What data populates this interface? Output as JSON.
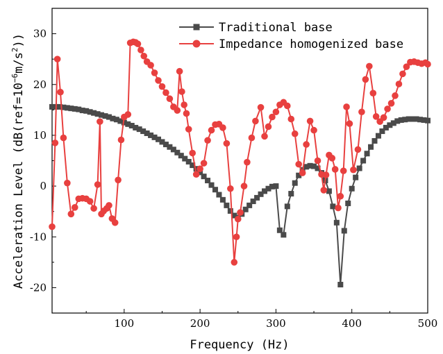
{
  "chart_data": {
    "type": "line",
    "xlabel": "Frequency (Hz)",
    "ylabel_prefix": "Acceleration Level (dB(ref=10",
    "ylabel_exp": "−6",
    "ylabel_mid": "m/s",
    "ylabel_exp2": "2",
    "ylabel_suffix": "))",
    "xlim": [
      5,
      500
    ],
    "ylim": [
      -25,
      35
    ],
    "xticks": [
      100,
      200,
      300,
      400,
      500
    ],
    "yticks": [
      -20,
      -10,
      0,
      10,
      20,
      30
    ],
    "legend_position": "top-right",
    "grid": false,
    "series": [
      {
        "name": "Traditional base",
        "color": "#4a4a4a",
        "marker": "square",
        "x": [
          5,
          10,
          15,
          20,
          25,
          30,
          35,
          40,
          45,
          50,
          55,
          60,
          65,
          70,
          75,
          80,
          85,
          90,
          95,
          100,
          105,
          110,
          115,
          120,
          125,
          130,
          135,
          140,
          145,
          150,
          155,
          160,
          165,
          170,
          175,
          180,
          185,
          190,
          195,
          200,
          205,
          210,
          215,
          220,
          225,
          230,
          235,
          240,
          245,
          250,
          255,
          260,
          265,
          270,
          275,
          280,
          285,
          290,
          295,
          300,
          305,
          310,
          315,
          320,
          325,
          330,
          335,
          340,
          345,
          350,
          355,
          360,
          365,
          370,
          375,
          380,
          385,
          390,
          395,
          400,
          405,
          410,
          415,
          420,
          425,
          430,
          435,
          440,
          445,
          450,
          455,
          460,
          465,
          470,
          475,
          480,
          485,
          490,
          495,
          500
        ],
        "y": [
          15.6,
          15.6,
          15.6,
          15.5,
          15.4,
          15.3,
          15.2,
          15.1,
          14.9,
          14.8,
          14.6,
          14.4,
          14.2,
          14.0,
          13.8,
          13.6,
          13.3,
          13.1,
          12.8,
          12.5,
          12.2,
          11.9,
          11.5,
          11.2,
          10.8,
          10.4,
          10.0,
          9.6,
          9.2,
          8.7,
          8.2,
          7.7,
          7.2,
          6.6,
          6.0,
          5.4,
          4.8,
          4.1,
          3.4,
          2.7,
          1.9,
          1.1,
          0.2,
          -0.7,
          -1.7,
          -2.7,
          -3.8,
          -4.9,
          -5.8,
          -6.2,
          -5.5,
          -4.6,
          -3.8,
          -3.0,
          -2.3,
          -1.6,
          -1.0,
          -0.5,
          -0.1,
          0.0,
          -8.7,
          -9.6,
          -4.0,
          -1.5,
          0.6,
          2.1,
          3.2,
          3.8,
          4.0,
          3.9,
          3.5,
          2.6,
          1.1,
          -1.0,
          -4.0,
          -7.2,
          -19.4,
          -8.8,
          -3.4,
          -0.5,
          1.7,
          3.5,
          5.0,
          6.4,
          7.7,
          8.9,
          9.9,
          10.8,
          11.5,
          12.0,
          12.4,
          12.8,
          13.0,
          13.1,
          13.2,
          13.2,
          13.2,
          13.1,
          13.0,
          12.9
        ]
      },
      {
        "name": "Impedance homogenized base",
        "color": "#e8403f",
        "marker": "circle",
        "x": [
          5,
          9,
          12,
          16,
          20,
          25,
          30,
          35,
          40,
          45,
          50,
          55,
          60,
          65,
          68,
          70,
          73,
          77,
          80,
          84,
          88,
          92,
          96,
          100,
          105,
          108,
          112,
          115,
          118,
          122,
          126,
          130,
          135,
          140,
          145,
          150,
          155,
          160,
          165,
          170,
          173,
          176,
          179,
          182,
          185,
          190,
          195,
          200,
          205,
          210,
          215,
          220,
          225,
          230,
          235,
          240,
          245,
          248,
          250,
          253,
          258,
          262,
          268,
          273,
          280,
          285,
          290,
          295,
          300,
          305,
          310,
          315,
          320,
          325,
          330,
          335,
          340,
          345,
          350,
          355,
          360,
          363,
          366,
          370,
          374,
          378,
          382,
          385,
          389,
          393,
          397,
          402,
          408,
          413,
          418,
          423,
          428,
          432,
          437,
          442,
          447,
          452,
          457,
          462,
          467,
          472,
          477,
          482,
          487,
          492,
          497,
          500
        ],
        "y": [
          -8,
          8.5,
          25,
          18.5,
          9.5,
          0.6,
          -5.5,
          -4.2,
          -2.5,
          -2.4,
          -2.5,
          -3.0,
          -4.4,
          0.3,
          12.7,
          -5.5,
          -4.9,
          -4.4,
          -3.8,
          -6.4,
          -7.2,
          1.2,
          9.1,
          13.6,
          14.1,
          28.2,
          28.4,
          28.3,
          28.0,
          26.8,
          25.6,
          24.5,
          23.8,
          22.3,
          20.8,
          19.6,
          18.4,
          17.2,
          15.6,
          14.9,
          22.6,
          18.6,
          16.0,
          14.3,
          11.2,
          6.5,
          2.3,
          3.4,
          4.5,
          9.0,
          11.0,
          12.1,
          12.2,
          11.5,
          8.4,
          -0.5,
          -15.0,
          -10.0,
          -6.5,
          -5.2,
          0.0,
          4.7,
          9.5,
          12.8,
          15.5,
          9.8,
          11.7,
          13.6,
          14.6,
          16.0,
          16.5,
          15.8,
          13.2,
          10.3,
          4.3,
          2.6,
          8.2,
          12.8,
          11.0,
          5.0,
          2.3,
          -0.8,
          2.2,
          6.1,
          5.5,
          3.3,
          -4.3,
          -2.0,
          3.0,
          15.6,
          12.3,
          3.2,
          7.2,
          14.6,
          21.0,
          23.6,
          18.3,
          13.7,
          12.7,
          13.5,
          15.2,
          16.3,
          17.8,
          20.1,
          22.1,
          23.5,
          24.4,
          24.5,
          24.3,
          24.1,
          24.3,
          24.0
        ]
      }
    ]
  }
}
